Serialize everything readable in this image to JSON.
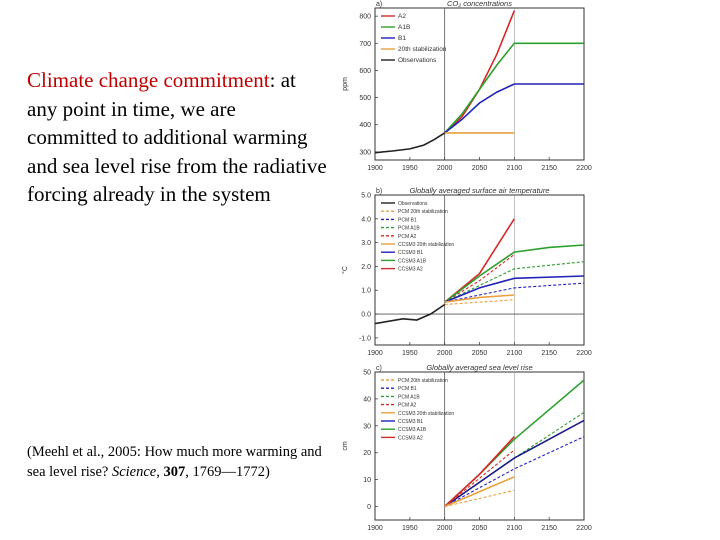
{
  "slide": {
    "heading_highlight": "Climate change commitment",
    "heading_rest": ": at any point in time, we are committed to additional warming and sea level rise from the radiative forcing already in the system",
    "citation": {
      "prefix": "(Meehl et al., 2005: How much more warming and sea level rise? ",
      "journal": "Science",
      "sep": ", ",
      "volume": "307",
      "pages": ", 1769—1772)"
    }
  },
  "colors": {
    "A2": "#d42a2a",
    "A1B": "#2ca02c",
    "B1": "#2222bb",
    "stab": "#e8a040",
    "obs": "#222222",
    "ccsm_b1": "#1c1c8a"
  },
  "chart_data": [
    {
      "type": "line",
      "panel": "a)",
      "title": "CO₂ concentrations",
      "ylabel": "ppm",
      "x_ticks": [
        "1900",
        "1950",
        "2000",
        "2050",
        "2100",
        "2150",
        "2200"
      ],
      "y_ticks": [
        "300",
        "400",
        "500",
        "600",
        "700",
        "800"
      ],
      "xlim": [
        1900,
        2200
      ],
      "ylim": [
        270,
        830
      ],
      "legend": [
        "A2",
        "A1B",
        "B1",
        "20th stabilization",
        "Observations"
      ],
      "series": [
        {
          "name": "A2",
          "color_key": "A2",
          "points": [
            [
              2000,
              370
            ],
            [
              2025,
              430
            ],
            [
              2050,
              530
            ],
            [
              2075,
              660
            ],
            [
              2100,
              820
            ]
          ]
        },
        {
          "name": "A1B",
          "color_key": "A1B",
          "points": [
            [
              2000,
              370
            ],
            [
              2025,
              440
            ],
            [
              2050,
              530
            ],
            [
              2075,
              620
            ],
            [
              2100,
              700
            ],
            [
              2200,
              700
            ]
          ]
        },
        {
          "name": "B1",
          "color_key": "B1",
          "points": [
            [
              2000,
              370
            ],
            [
              2025,
              420
            ],
            [
              2050,
              480
            ],
            [
              2075,
              520
            ],
            [
              2100,
              550
            ],
            [
              2200,
              550
            ]
          ]
        },
        {
          "name": "20th stabilization",
          "color_key": "stab",
          "points": [
            [
              2000,
              370
            ],
            [
              2100,
              370
            ]
          ]
        },
        {
          "name": "Observations",
          "color_key": "obs",
          "points": [
            [
              1900,
              297
            ],
            [
              1925,
              303
            ],
            [
              1950,
              311
            ],
            [
              1970,
              325
            ],
            [
              1985,
              345
            ],
            [
              2000,
              370
            ]
          ]
        }
      ]
    },
    {
      "type": "line",
      "panel": "b)",
      "title": "Globally averaged surface air temperature",
      "ylabel": "°C",
      "x_ticks": [
        "1900",
        "1950",
        "2000",
        "2050",
        "2100",
        "2150",
        "2200"
      ],
      "y_ticks": [
        "-1.0",
        "0.0",
        "1.0",
        "2.0",
        "3.0",
        "4.0",
        "5.0"
      ],
      "xlim": [
        1900,
        2200
      ],
      "ylim": [
        -1.3,
        5.0
      ],
      "legend": [
        "Observations",
        "PCM 20th stabilization",
        "PCM B1",
        "PCM A1B",
        "PCM A2",
        "CCSM3 20th stabilization",
        "CCSM3 B1",
        "CCSM3 A1B",
        "CCSM3 A2"
      ],
      "series": [
        {
          "name": "PCM A2",
          "color_key": "A2",
          "dash": true,
          "points": [
            [
              2000,
              0.5
            ],
            [
              2050,
              1.4
            ],
            [
              2100,
              2.5
            ]
          ]
        },
        {
          "name": "CCSM3 A2",
          "color_key": "A2",
          "points": [
            [
              2000,
              0.5
            ],
            [
              2050,
              1.7
            ],
            [
              2100,
              4.0
            ]
          ]
        },
        {
          "name": "CCSM3 A1B",
          "color_key": "A1B",
          "points": [
            [
              2000,
              0.5
            ],
            [
              2050,
              1.6
            ],
            [
              2100,
              2.6
            ],
            [
              2150,
              2.8
            ],
            [
              2200,
              2.9
            ]
          ]
        },
        {
          "name": "PCM A1B",
          "color_key": "A1B",
          "dash": true,
          "points": [
            [
              2000,
              0.5
            ],
            [
              2100,
              1.9
            ],
            [
              2200,
              2.2
            ]
          ]
        },
        {
          "name": "CCSM3 B1",
          "color_key": "B1",
          "points": [
            [
              2000,
              0.5
            ],
            [
              2050,
              1.1
            ],
            [
              2100,
              1.5
            ],
            [
              2200,
              1.6
            ]
          ]
        },
        {
          "name": "PCM B1",
          "color_key": "B1",
          "dash": true,
          "points": [
            [
              2000,
              0.5
            ],
            [
              2100,
              1.1
            ],
            [
              2200,
              1.3
            ]
          ]
        },
        {
          "name": "CCSM3 20th stabilization",
          "color_key": "stab",
          "points": [
            [
              2000,
              0.5
            ],
            [
              2050,
              0.7
            ],
            [
              2100,
              0.8
            ]
          ]
        },
        {
          "name": "PCM 20th stabilization",
          "color_key": "stab",
          "dash": true,
          "points": [
            [
              2000,
              0.4
            ],
            [
              2100,
              0.6
            ]
          ]
        },
        {
          "name": "Observations",
          "color_key": "obs",
          "points": [
            [
              1900,
              -0.4
            ],
            [
              1940,
              -0.2
            ],
            [
              1960,
              -0.25
            ],
            [
              1980,
              0.0
            ],
            [
              2000,
              0.4
            ]
          ]
        }
      ]
    },
    {
      "type": "line",
      "panel": "c)",
      "title": "Globally averaged sea level rise",
      "ylabel": "cm",
      "x_ticks": [
        "1900",
        "1950",
        "2000",
        "2050",
        "2100",
        "2150",
        "2200"
      ],
      "y_ticks": [
        "0",
        "10",
        "20",
        "30",
        "40",
        "50"
      ],
      "xlim": [
        1900,
        2200
      ],
      "ylim": [
        -5,
        50
      ],
      "legend": [
        "PCM 20th stabilization",
        "PCM B1",
        "PCM A1B",
        "PCM A2",
        "CCSM3 20th stabilization",
        "CCSM3 B1",
        "CCSM3 A1B",
        "CCSM3 A2"
      ],
      "series": [
        {
          "name": "CCSM3 A1B",
          "color_key": "A1B",
          "points": [
            [
              2000,
              0
            ],
            [
              2050,
              12
            ],
            [
              2100,
              25
            ],
            [
              2150,
              36
            ],
            [
              2200,
              47
            ]
          ]
        },
        {
          "name": "PCM A1B",
          "color_key": "A1B",
          "dash": true,
          "points": [
            [
              2000,
              0
            ],
            [
              2100,
              18
            ],
            [
              2200,
              35
            ]
          ]
        },
        {
          "name": "CCSM3 B1",
          "color_key": "ccsm_b1",
          "points": [
            [
              2000,
              0
            ],
            [
              2100,
              18
            ],
            [
              2200,
              32
            ]
          ]
        },
        {
          "name": "PCM B1",
          "color_key": "B1",
          "dash": true,
          "points": [
            [
              2000,
              0
            ],
            [
              2100,
              14
            ],
            [
              2200,
              26
            ]
          ]
        },
        {
          "name": "CCSM3 A2",
          "color_key": "A2",
          "points": [
            [
              2000,
              0
            ],
            [
              2050,
              12
            ],
            [
              2100,
              26
            ]
          ]
        },
        {
          "name": "PCM A2",
          "color_key": "A2",
          "dash": true,
          "points": [
            [
              2000,
              0
            ],
            [
              2100,
              21
            ]
          ]
        },
        {
          "name": "CCSM3 20th stabilization",
          "color_key": "stab",
          "points": [
            [
              2000,
              0
            ],
            [
              2100,
              11
            ]
          ]
        },
        {
          "name": "PCM 20th stabilization",
          "color_key": "stab",
          "dash": true,
          "points": [
            [
              2000,
              0
            ],
            [
              2100,
              6
            ]
          ]
        }
      ]
    }
  ]
}
